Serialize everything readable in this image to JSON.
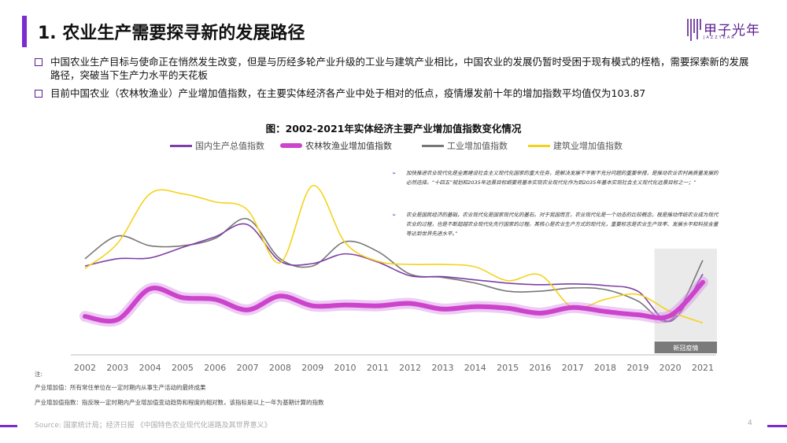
{
  "header": {
    "title": "1. 农业生产需要探寻新的发展路径",
    "logo_text": "甲子光年",
    "logo_sub": "JAZZYEAR"
  },
  "bullets": [
    "中国农业生产目标与使命正在悄然发生改变，但是与历经多轮产业升级的工业与建筑产业相比，中国农业的发展仍暂时受困于现有模式的桎梏，需要探索新的发展路径，突破当下生产力水平的天花板",
    "目前中国农业（农林牧渔业）产业增加值指数，在主要实体经济各产业中处于相对的低点，疫情爆发前十年的增加指数平均值仅为103.87"
  ],
  "annotations": [
    "加快推进农业现代化是全面建设社会主义现代化国家的重大任务，是解决发展不平衡不充分问题的重要举措，是推动农业农村高质量发展的必然选择。“十四五”规划和2035年远景目标纲要将基本实现农业现代化作为到2035年基本实现社会主义现代化远景目标之一；”",
    "农业是国民经济的基础，农业现代化是国家现代化的基石。对于我国而言，农业现代化是一个动态的比较概念，既是推动传统农业成为现代农业的过程，也是不断超越农业现代化先行国家的过程。其核心是农业生产方式的现代化，重要标志是农业生产效率、发展水平和科技含量等达到世界先进水平。”"
  ],
  "chart_data": {
    "type": "line",
    "title": "图：2002-2021年实体经济主要产业增加值指数变化情况",
    "categories": [
      "2002",
      "2003",
      "2004",
      "2005",
      "2006",
      "2007",
      "2008",
      "2009",
      "2010",
      "2011",
      "2012",
      "2013",
      "2014",
      "2015",
      "2016",
      "2017",
      "2018",
      "2019",
      "2020",
      "2021"
    ],
    "series": [
      {
        "name": "国内生产总值指数",
        "color": "#7e3fa6",
        "values": [
          109.1,
          110.0,
          110.1,
          111.4,
          112.7,
          114.2,
          109.7,
          109.4,
          110.6,
          109.6,
          107.9,
          107.8,
          107.4,
          107.0,
          106.8,
          106.9,
          106.7,
          106.0,
          102.3,
          108.1
        ]
      },
      {
        "name": "农林牧渔业增加值指数",
        "color": "#cc44cc",
        "values": [
          102.9,
          102.5,
          106.3,
          105.2,
          105.0,
          103.7,
          105.4,
          104.2,
          104.3,
          104.2,
          104.5,
          103.8,
          104.1,
          103.9,
          103.3,
          104.0,
          103.5,
          103.1,
          103.0,
          107.1
        ]
      },
      {
        "name": "工业增加值指数",
        "color": "#777777",
        "values": [
          110.0,
          112.8,
          111.6,
          111.6,
          112.5,
          114.9,
          110.0,
          109.1,
          112.1,
          110.9,
          108.1,
          107.7,
          107.0,
          106.0,
          106.0,
          106.4,
          106.2,
          104.8,
          102.4,
          109.8
        ]
      },
      {
        "name": "建筑业增加值指数",
        "color": "#f5d21a",
        "values": [
          108.8,
          111.9,
          118.0,
          118.0,
          117.0,
          116.0,
          109.5,
          119.0,
          112.0,
          109.7,
          109.3,
          109.3,
          109.0,
          107.3,
          108.0,
          104.0,
          105.0,
          105.6,
          103.5,
          102.1
        ]
      }
    ],
    "ylim": [
      100,
      122
    ],
    "highlight_label": "新冠疫情",
    "legend_position": "top",
    "grid": false
  },
  "footnotes": {
    "label": "注:",
    "line1": "产业增加值：所有常住单位在一定时期内从事生产活动的最终成果",
    "line2": "产业增加值指数：指反映一定时期内产业增加值变动趋势和程度的相对数，该指标是以上一年为基期计算的指数"
  },
  "source": "Source: 国家统计局；经济日报 《中国特色农业现代化道路及其世界意义》",
  "page_number": "4"
}
